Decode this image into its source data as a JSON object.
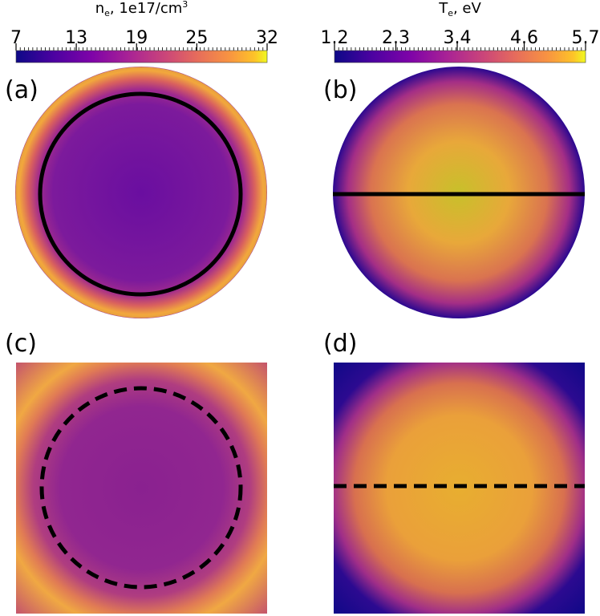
{
  "colorbars": [
    {
      "title": {
        "base": "n",
        "sub": "e",
        "rest": ", 1e17/cm",
        "sup": "3"
      },
      "lim": [
        7,
        32
      ],
      "ticks": [
        7,
        13,
        19,
        25,
        32
      ]
    },
    {
      "title": {
        "base": "T",
        "sub": "e",
        "rest": ", eV",
        "sup": null
      },
      "lim": [
        1.2,
        5.7
      ],
      "ticks": [
        1.2,
        2.3,
        3.4,
        4.6,
        5.7
      ]
    }
  ],
  "panels": [
    {
      "label": "(a)"
    },
    {
      "label": "(b)"
    },
    {
      "label": "(c)"
    },
    {
      "label": "(d)"
    }
  ]
}
